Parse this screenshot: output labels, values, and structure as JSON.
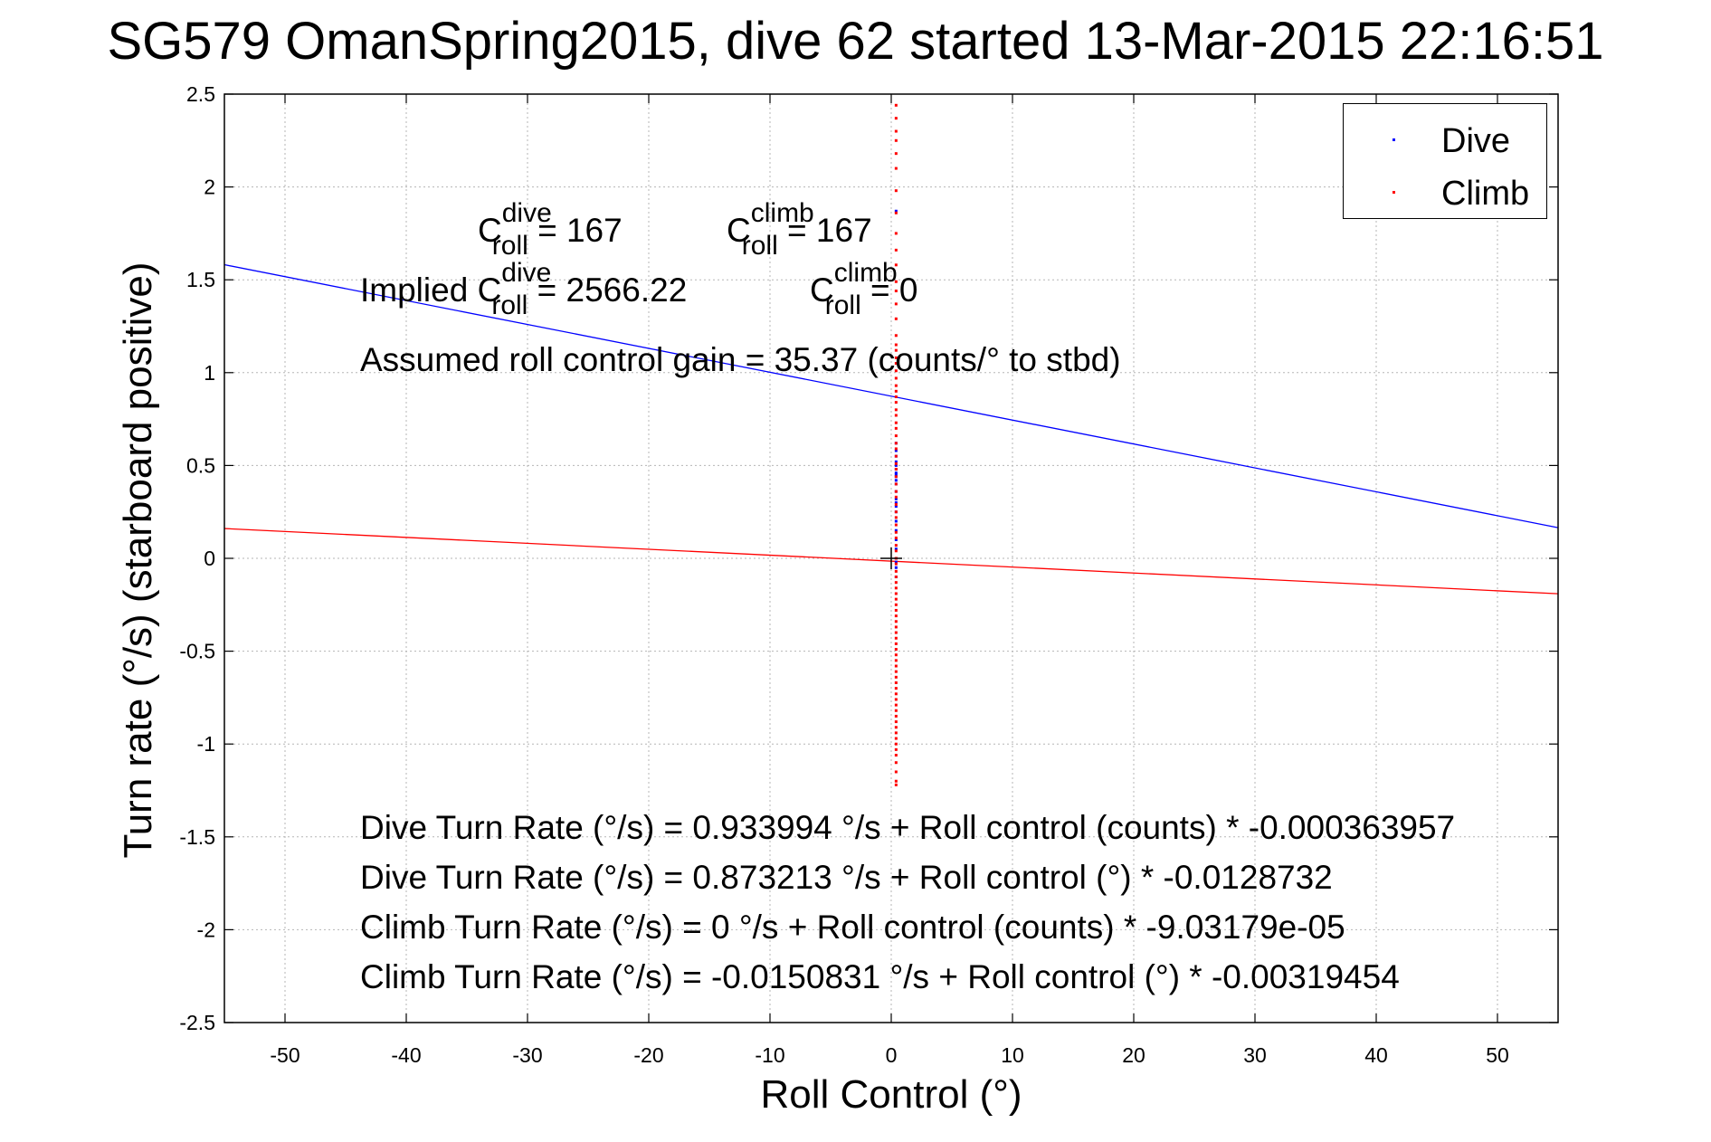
{
  "chart_data": {
    "type": "scatter",
    "title": "SG579 OmanSpring2015, dive 62 started 13-Mar-2015 22:16:51",
    "xlabel": "Roll Control (°)",
    "ylabel": "Turn rate (°/s)  (starboard positive)",
    "xlim": [
      -55,
      55
    ],
    "ylim": [
      -2.5,
      2.5
    ],
    "xticks": [
      -50,
      -40,
      -30,
      -20,
      -10,
      0,
      10,
      20,
      30,
      40,
      50
    ],
    "yticks": [
      -2.5,
      -2,
      -1.5,
      -1,
      -0.5,
      0,
      0.5,
      1,
      1.5,
      2,
      2.5
    ],
    "grid": true,
    "legend_position": "top-right",
    "colors": {
      "dive": "#0000ff",
      "climb": "#ff0000"
    },
    "series": [
      {
        "name": "Dive",
        "color": "#0000ff",
        "points": [
          [
            0.4,
            1.87
          ],
          [
            0.4,
            0.62
          ],
          [
            0.4,
            0.58
          ],
          [
            0.4,
            0.55
          ],
          [
            0.4,
            0.52
          ],
          [
            0.4,
            0.5
          ],
          [
            0.4,
            0.48
          ],
          [
            0.4,
            0.46
          ],
          [
            0.4,
            0.45
          ],
          [
            0.4,
            0.44
          ],
          [
            0.4,
            0.42
          ],
          [
            0.4,
            0.4
          ],
          [
            0.4,
            0.36
          ],
          [
            0.4,
            0.32
          ],
          [
            0.4,
            0.3
          ],
          [
            0.4,
            0.28
          ],
          [
            0.4,
            0.25
          ],
          [
            0.4,
            0.2
          ],
          [
            0.4,
            0.15
          ],
          [
            0.4,
            0.1
          ],
          [
            0.4,
            0.05
          ],
          [
            0.4,
            0.0
          ],
          [
            0.4,
            -0.02
          ],
          [
            0.4,
            -0.05
          ],
          [
            0.4,
            -0.1
          ]
        ]
      },
      {
        "name": "Climb",
        "color": "#ff0000",
        "points": [
          [
            0.4,
            2.44
          ],
          [
            0.4,
            2.37
          ],
          [
            0.4,
            2.3
          ],
          [
            0.4,
            2.25
          ],
          [
            0.4,
            2.18
          ],
          [
            0.4,
            2.1
          ],
          [
            0.4,
            1.98
          ],
          [
            0.4,
            1.86
          ],
          [
            0.4,
            1.75
          ],
          [
            0.4,
            1.66
          ],
          [
            0.4,
            1.58
          ],
          [
            0.4,
            1.49
          ],
          [
            0.4,
            1.44
          ],
          [
            0.4,
            1.37
          ],
          [
            0.4,
            1.29
          ],
          [
            0.4,
            1.2
          ],
          [
            0.4,
            1.15
          ],
          [
            0.4,
            1.12
          ],
          [
            0.4,
            1.08
          ],
          [
            0.4,
            1.05
          ],
          [
            0.4,
            1.01
          ],
          [
            0.4,
            0.97
          ],
          [
            0.4,
            0.93
          ],
          [
            0.4,
            0.9
          ],
          [
            0.4,
            0.87
          ],
          [
            0.4,
            0.84
          ],
          [
            0.4,
            0.8
          ],
          [
            0.4,
            0.77
          ],
          [
            0.4,
            0.73
          ],
          [
            0.4,
            0.7
          ],
          [
            0.4,
            0.66
          ],
          [
            0.4,
            0.62
          ],
          [
            0.4,
            0.59
          ],
          [
            0.4,
            0.55
          ],
          [
            0.4,
            0.51
          ],
          [
            0.4,
            0.48
          ],
          [
            0.4,
            0.44
          ],
          [
            0.4,
            0.4
          ],
          [
            0.4,
            0.36
          ],
          [
            0.4,
            0.33
          ],
          [
            0.4,
            0.29
          ],
          [
            0.4,
            0.25
          ],
          [
            0.4,
            0.22
          ],
          [
            0.4,
            0.18
          ],
          [
            0.4,
            0.14
          ],
          [
            0.4,
            0.11
          ],
          [
            0.4,
            0.07
          ],
          [
            0.4,
            0.04
          ],
          [
            0.4,
            0.0
          ],
          [
            0.4,
            -0.03
          ],
          [
            0.4,
            -0.07
          ],
          [
            0.4,
            -0.1
          ],
          [
            0.4,
            -0.13
          ],
          [
            0.4,
            -0.16
          ],
          [
            0.4,
            -0.19
          ],
          [
            0.4,
            -0.22
          ],
          [
            0.4,
            -0.25
          ],
          [
            0.4,
            -0.28
          ],
          [
            0.4,
            -0.31
          ],
          [
            0.4,
            -0.34
          ],
          [
            0.4,
            -0.37
          ],
          [
            0.4,
            -0.4
          ],
          [
            0.4,
            -0.43
          ],
          [
            0.4,
            -0.46
          ],
          [
            0.4,
            -0.49
          ],
          [
            0.4,
            -0.52
          ],
          [
            0.4,
            -0.55
          ],
          [
            0.4,
            -0.58
          ],
          [
            0.4,
            -0.61
          ],
          [
            0.4,
            -0.64
          ],
          [
            0.4,
            -0.67
          ],
          [
            0.4,
            -0.7
          ],
          [
            0.4,
            -0.73
          ],
          [
            0.4,
            -0.76
          ],
          [
            0.4,
            -0.79
          ],
          [
            0.4,
            -0.82
          ],
          [
            0.4,
            -0.85
          ],
          [
            0.4,
            -0.88
          ],
          [
            0.4,
            -0.91
          ],
          [
            0.4,
            -0.94
          ],
          [
            0.4,
            -0.97
          ],
          [
            0.4,
            -1.0
          ],
          [
            0.4,
            -1.03
          ],
          [
            0.4,
            -1.06
          ],
          [
            0.4,
            -1.1
          ],
          [
            0.4,
            -1.15
          ],
          [
            0.4,
            -1.2
          ],
          [
            0.4,
            -1.22
          ]
        ]
      }
    ],
    "fit_lines": [
      {
        "series": "Dive",
        "color": "#0000ff",
        "x": [
          -55,
          55
        ],
        "y": [
          1.5812,
          0.1652
        ]
      },
      {
        "series": "Climb",
        "color": "#ff0000",
        "x": [
          -55,
          55
        ],
        "y": [
          0.1606,
          -0.1908
        ]
      }
    ],
    "origin_marker": [
      0,
      0
    ]
  },
  "annotations": {
    "c_letter": "C",
    "roll": "roll",
    "dive": "dive",
    "climb": "climb",
    "c_dive_value": "= 167",
    "c_climb_value": "= 167",
    "implied_prefix": "Implied ",
    "implied_dive_value": "= 2566.22",
    "implied_climb_value": "= 0",
    "gain": "Assumed roll control gain = 35.37 (counts/° to stbd)",
    "eq1": "Dive Turn Rate (°/s) = 0.933994 °/s + Roll control (counts) * -0.000363957",
    "eq2": "Dive Turn Rate (°/s) = 0.873213 °/s + Roll control (°) * -0.0128732",
    "eq3": "Climb Turn Rate (°/s) = 0 °/s + Roll control (counts) * -9.03179e-05",
    "eq4": "Climb Turn Rate (°/s) = -0.0150831 °/s + Roll control (°) * -0.00319454"
  }
}
